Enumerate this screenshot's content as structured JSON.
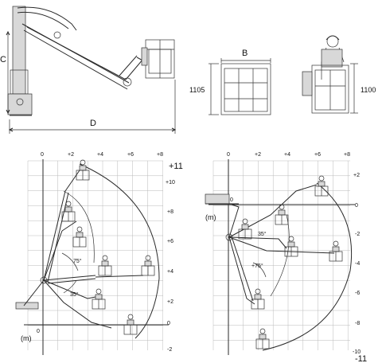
{
  "top_views": {
    "side_label_height": "C",
    "side_label_length": "D",
    "front_label_width": "B",
    "front_height": "1105",
    "rear_height": "1100"
  },
  "left_chart": {
    "x_ticks": [
      "0",
      "+2",
      "+4",
      "+6",
      "+8"
    ],
    "y_ticks": [
      "+10",
      "+8",
      "+6",
      "+4",
      "+2",
      "0",
      "-2"
    ],
    "max_height": "+11",
    "unit": "(m)",
    "angle_upper": "75°",
    "angle_lower": "35°"
  },
  "right_chart": {
    "x_ticks": [
      "0",
      "+2",
      "+4",
      "+6",
      "+8"
    ],
    "y_ticks": [
      "+2",
      "0",
      "-2",
      "-4",
      "-6",
      "-8",
      "-10"
    ],
    "max_depth": "-11",
    "unit": "(m)",
    "angle_upper": "35°",
    "angle_lower": "+75°"
  }
}
